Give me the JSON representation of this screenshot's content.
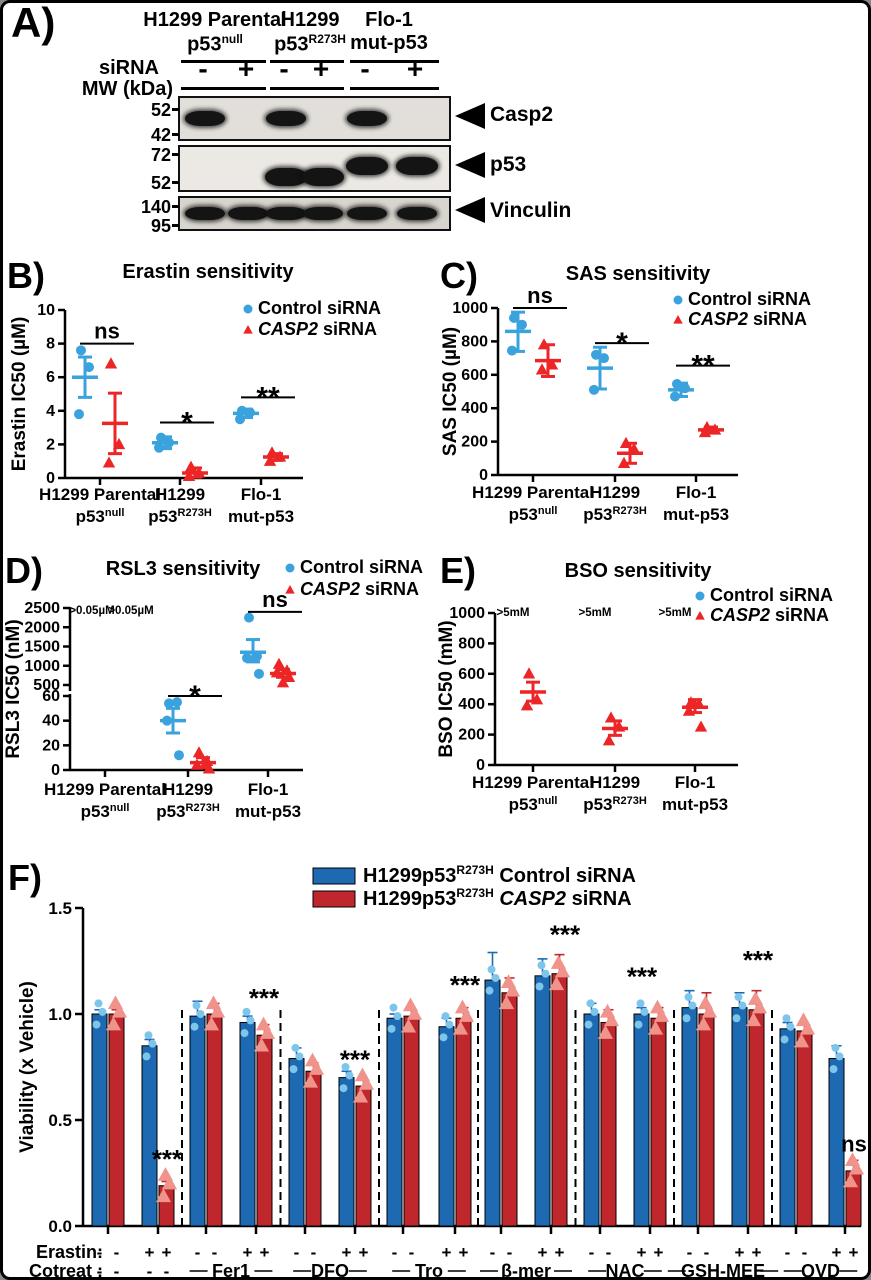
{
  "colors": {
    "blue": "#3AA2DC",
    "red": "#EC2627",
    "bar_blue": "#1D69B2",
    "bar_red": "#C0272D",
    "dot_blue": "#7EC5EC",
    "tri_red": "#F0938B"
  },
  "panel_a": {
    "label": "A)",
    "groups": [
      {
        "line1": "H1299 Parental",
        "line2_base": "p53",
        "line2_sup": "null"
      },
      {
        "line1": "H1299",
        "line2_base": "p53",
        "line2_sup": "R273H"
      },
      {
        "line1": "Flo-1",
        "line2_base": "mut-p53",
        "line2_sup": ""
      }
    ],
    "sirna_label": "siRNA",
    "mw_label": "MW (kDa)",
    "lane_signs": [
      "-",
      "+",
      "-",
      "+",
      "-",
      "+"
    ],
    "blots": [
      {
        "target": "Casp2",
        "mw_top": "52",
        "mw_bottom": "42",
        "bands": [
          1,
          0,
          1,
          0,
          1,
          0
        ]
      },
      {
        "target": "p53",
        "mw_top": "72",
        "mw_bottom": "52",
        "bands": [
          0,
          0,
          1,
          1,
          1,
          1
        ]
      },
      {
        "target": "Vinculin",
        "mw_top": "140",
        "mw_bottom": "95",
        "bands": [
          1,
          1,
          1,
          1,
          1,
          1
        ]
      }
    ]
  },
  "chart_data": [
    {
      "id": "B",
      "type": "scatter",
      "panel_label": "B)",
      "title": "Erastin sensitivity",
      "ylabel": "Erastin IC50 (µM)",
      "yticks": [
        [
          0,
          "0"
        ],
        [
          2,
          "2"
        ],
        [
          4,
          "4"
        ],
        [
          6,
          "6"
        ],
        [
          8,
          "8"
        ],
        [
          10,
          "10"
        ]
      ],
      "ylim": [
        0,
        10
      ],
      "legend": [
        {
          "marker": "circle",
          "color_key": "blue",
          "parts": [
            {
              "t": "Control siRNA"
            }
          ]
        },
        {
          "marker": "triangle",
          "color_key": "red",
          "parts": [
            {
              "t": "CASP2",
              "i": true
            },
            {
              "t": " siRNA"
            }
          ]
        }
      ],
      "groups": [
        {
          "line1": "H1299 Parental",
          "line2_base": "p53",
          "line2_sup": "null"
        },
        {
          "line1": "H1299",
          "line2_base": "p53",
          "line2_sup": "R273H"
        },
        {
          "line1": "Flo-1",
          "line2_base": "mut-p53",
          "line2_sup": ""
        }
      ],
      "series": [
        {
          "name": "Control siRNA",
          "marker": "circle",
          "color_key": "blue",
          "data": [
            {
              "pts": [
                7.6,
                6.6,
                3.8
              ],
              "mean": 6.0,
              "lo": 4.8,
              "hi": 7.2
            },
            {
              "pts": [
                2.4,
                2.1,
                1.8
              ],
              "mean": 2.1,
              "lo": 1.75,
              "hi": 2.45
            },
            {
              "pts": [
                4.0,
                3.9,
                3.5
              ],
              "mean": 3.85,
              "lo": 3.6,
              "hi": 4.1
            }
          ]
        },
        {
          "name": "CASP2 siRNA",
          "marker": "triangle",
          "color_key": "red",
          "data": [
            {
              "pts": [
                6.8,
                2.0,
                0.9
              ],
              "mean": 3.25,
              "lo": 1.45,
              "hi": 5.05
            },
            {
              "pts": [
                0.65,
                0.3,
                0.1
              ],
              "mean": 0.3,
              "lo": 0.05,
              "hi": 0.6
            },
            {
              "pts": [
                1.5,
                1.25,
                1.0
              ],
              "mean": 1.25,
              "lo": 1.05,
              "hi": 1.45
            }
          ]
        }
      ],
      "sigs": [
        {
          "g": 0,
          "y": 8.0,
          "text": "ns"
        },
        {
          "g": 1,
          "y": 3.3,
          "text": "*"
        },
        {
          "g": 2,
          "y": 4.8,
          "text": "**"
        }
      ],
      "annotations": []
    },
    {
      "id": "C",
      "type": "scatter",
      "panel_label": "C)",
      "title": "SAS sensitivity",
      "ylabel": "SAS IC50 (µM)",
      "yticks": [
        [
          0,
          "0"
        ],
        [
          200,
          "200"
        ],
        [
          400,
          "400"
        ],
        [
          600,
          "600"
        ],
        [
          800,
          "800"
        ],
        [
          1000,
          "1000"
        ]
      ],
      "ylim": [
        0,
        1000
      ],
      "legend": [
        {
          "marker": "circle",
          "color_key": "blue",
          "parts": [
            {
              "t": "Control siRNA"
            }
          ]
        },
        {
          "marker": "triangle",
          "color_key": "red",
          "parts": [
            {
              "t": "CASP2",
              "i": true
            },
            {
              "t": " siRNA"
            }
          ]
        }
      ],
      "groups": [
        {
          "line1": "H1299 Parental",
          "line2_base": "p53",
          "line2_sup": "null"
        },
        {
          "line1": "H1299",
          "line2_base": "p53",
          "line2_sup": "R273H"
        },
        {
          "line1": "Flo-1",
          "line2_base": "mut-p53",
          "line2_sup": ""
        }
      ],
      "series": [
        {
          "name": "Control siRNA",
          "marker": "circle",
          "color_key": "blue",
          "data": [
            {
              "pts": [
                940,
                900,
                745
              ],
              "mean": 860,
              "lo": 740,
              "hi": 975
            },
            {
              "pts": [
                720,
                700,
                510
              ],
              "mean": 640,
              "lo": 515,
              "hi": 765
            },
            {
              "pts": [
                545,
                520,
                470
              ],
              "mean": 510,
              "lo": 470,
              "hi": 550
            }
          ]
        },
        {
          "name": "CASP2 siRNA",
          "marker": "triangle",
          "color_key": "red",
          "data": [
            {
              "pts": [
                780,
                660,
                630
              ],
              "mean": 685,
              "lo": 590,
              "hi": 780
            },
            {
              "pts": [
                190,
                155,
                70
              ],
              "mean": 130,
              "lo": 70,
              "hi": 190
            },
            {
              "pts": [
                285,
                270,
                255
              ],
              "mean": 270,
              "lo": 253,
              "hi": 287
            }
          ]
        }
      ],
      "sigs": [
        {
          "g": 0,
          "y": 1000,
          "text": "ns"
        },
        {
          "g": 1,
          "y": 790,
          "text": "*"
        },
        {
          "g": 2,
          "y": 655,
          "text": "**"
        }
      ],
      "annotations": []
    },
    {
      "id": "D",
      "type": "scatter",
      "panel_label": "D)",
      "title": "RSL3 sensitivity",
      "ylabel": "RSL3 IC50 (nM)",
      "yticks": [
        [
          0,
          "0"
        ],
        [
          20,
          "20"
        ],
        [
          40,
          "40"
        ],
        [
          60,
          "60"
        ],
        [
          500,
          "500"
        ],
        [
          1000,
          "1000"
        ],
        [
          1500,
          "1500"
        ],
        [
          2000,
          "2000"
        ],
        [
          2500,
          "2500"
        ]
      ],
      "axis_break": {
        "lower": [
          0,
          60
        ],
        "upper": [
          500,
          2500
        ]
      },
      "legend": [
        {
          "marker": "circle",
          "color_key": "blue",
          "parts": [
            {
              "t": "Control siRNA"
            }
          ]
        },
        {
          "marker": "triangle",
          "color_key": "red",
          "parts": [
            {
              "t": "CASP2",
              "i": true
            },
            {
              "t": " siRNA"
            }
          ]
        }
      ],
      "groups": [
        {
          "line1": "H1299 Parental",
          "line2_base": "p53",
          "line2_sup": "null"
        },
        {
          "line1": "H1299",
          "line2_base": "p53",
          "line2_sup": "R273H"
        },
        {
          "line1": "Flo-1",
          "line2_base": "mut-p53",
          "line2_sup": ""
        }
      ],
      "series": [
        {
          "name": "Control siRNA",
          "marker": "circle",
          "color_key": "blue",
          "data": [
            null,
            {
              "pts": [
                54,
                55,
                40,
                12
              ],
              "mean": 40,
              "lo": 30,
              "hi": 50
            },
            {
              "pts": [
                2250,
                1250,
                1200,
                790
              ],
              "mean": 1350,
              "lo": 1100,
              "hi": 1680
            }
          ]
        },
        {
          "name": "CASP2 siRNA",
          "marker": "triangle",
          "color_key": "red",
          "data": [
            null,
            {
              "pts": [
                14,
                7,
                4,
                1
              ],
              "mean": 6,
              "lo": 2,
              "hi": 10
            },
            {
              "pts": [
                1040,
                870,
                820,
                700,
                560
              ],
              "mean": 800,
              "lo": 700,
              "hi": 900
            }
          ]
        }
      ],
      "sigs": [
        {
          "g": 1,
          "y": 60,
          "text": "*"
        },
        {
          "g": 2,
          "y": 2400,
          "text": "ns"
        }
      ],
      "annotations": [
        {
          "g": 0,
          "dx": -13,
          "y": 2450,
          "text": ">0.05µM",
          "color_key": "blue"
        },
        {
          "g": 0,
          "dx": 26,
          "y": 2450,
          "text": ">0.05µM",
          "color_key": "red"
        }
      ]
    },
    {
      "id": "E",
      "type": "scatter",
      "panel_label": "E)",
      "title": "BSO sensitivity",
      "ylabel": "BSO IC50 (mM)",
      "yticks": [
        [
          0,
          "0"
        ],
        [
          200,
          "200"
        ],
        [
          400,
          "400"
        ],
        [
          600,
          "600"
        ],
        [
          800,
          "800"
        ],
        [
          1000,
          "1000"
        ]
      ],
      "ylim": [
        0,
        1000
      ],
      "legend": [
        {
          "marker": "circle",
          "color_key": "blue",
          "parts": [
            {
              "t": "Control siRNA"
            }
          ]
        },
        {
          "marker": "triangle",
          "color_key": "red",
          "parts": [
            {
              "t": "CASP2",
              "i": true
            },
            {
              "t": " siRNA"
            }
          ]
        }
      ],
      "groups": [
        {
          "line1": "H1299 Parental",
          "line2_base": "p53",
          "line2_sup": "null"
        },
        {
          "line1": "H1299",
          "line2_base": "p53",
          "line2_sup": "R273H"
        },
        {
          "line1": "Flo-1",
          "line2_base": "mut-p53",
          "line2_sup": ""
        }
      ],
      "series": [
        {
          "name": "Control siRNA",
          "marker": "circle",
          "color_key": "blue",
          "data": [
            null,
            null,
            null
          ]
        },
        {
          "name": "CASP2 siRNA",
          "marker": "triangle",
          "color_key": "red",
          "data": [
            {
              "pts": [
                600,
                430,
                390
              ],
              "mean": 480,
              "lo": 420,
              "hi": 545
            },
            {
              "pts": [
                310,
                250,
                160
              ],
              "mean": 240,
              "lo": 195,
              "hi": 290
            },
            {
              "pts": [
                410,
                400,
                355,
                250
              ],
              "mean": 380,
              "lo": 345,
              "hi": 430
            }
          ]
        }
      ],
      "sigs": [],
      "annotations": [
        {
          "g": 0,
          "dx": -20,
          "y": 1005,
          "text": ">5mM",
          "color_key": "blue"
        },
        {
          "g": 1,
          "dx": -20,
          "y": 1005,
          "text": ">5mM",
          "color_key": "blue"
        },
        {
          "g": 2,
          "dx": -20,
          "y": 1005,
          "text": ">5mM",
          "color_key": "blue"
        }
      ]
    },
    {
      "id": "F",
      "type": "bar",
      "panel_label": "F)",
      "ylabel": "Viability (x Vehicle)",
      "yticks": [
        [
          0,
          "0.0"
        ],
        [
          0.5,
          "0.5"
        ],
        [
          1,
          "1.0"
        ],
        [
          1.5,
          "1.5"
        ]
      ],
      "ylim": [
        0,
        1.5
      ],
      "legend": [
        {
          "marker": "rect",
          "color_key": "bar_blue",
          "parts": [
            {
              "t": "H1299p53"
            },
            {
              "t": "R273H",
              "sup": true
            },
            {
              "t": " Control siRNA"
            }
          ]
        },
        {
          "marker": "rect",
          "color_key": "bar_red",
          "parts": [
            {
              "t": "H1299p53"
            },
            {
              "t": "R273H",
              "sup": true
            },
            {
              "t": " "
            },
            {
              "t": "CASP2",
              "i": true
            },
            {
              "t": " siRNA"
            }
          ]
        }
      ],
      "row_labels": {
        "erastin": "Erastin:",
        "cotreat": "Cotreat :"
      },
      "erastin_signs": [
        "-",
        "+",
        "-",
        "+",
        "-",
        "+",
        "-",
        "+",
        "-",
        "+",
        "-",
        "+",
        "-",
        "+",
        "-",
        "+"
      ],
      "cotreat_groups": [
        {
          "label": "- -",
          "pairs": [
            0,
            1
          ],
          "dashes": true
        },
        {
          "label": "Fer1",
          "pairs": [
            2,
            3
          ]
        },
        {
          "label": "DFO",
          "pairs": [
            4,
            5
          ]
        },
        {
          "label": "Tro",
          "pairs": [
            6,
            7
          ]
        },
        {
          "label": "β-mer",
          "pairs": [
            8,
            9
          ]
        },
        {
          "label": "NAC",
          "pairs": [
            10,
            11
          ]
        },
        {
          "label": "GSH-MEE",
          "pairs": [
            12,
            13
          ]
        },
        {
          "label": "QVD",
          "pairs": [
            14,
            15
          ]
        }
      ],
      "series": [
        {
          "name": "H1299p53R273H Control siRNA",
          "color_key": "bar_blue",
          "point_color_key": "dot_blue",
          "marker": "circle",
          "values": [
            1.0,
            0.85,
            0.99,
            0.96,
            0.79,
            0.7,
            0.98,
            0.94,
            1.16,
            1.18,
            1.0,
            1.0,
            1.03,
            1.03,
            0.93,
            0.79
          ],
          "err": [
            0.02,
            0.03,
            0.07,
            0.03,
            0.05,
            0.03,
            0.02,
            0.04,
            0.13,
            0.08,
            0.05,
            0.03,
            0.08,
            0.07,
            0.03,
            0.06
          ]
        },
        {
          "name": "H1299p53R273H CASP2 siRNA",
          "color_key": "bar_red",
          "point_color_key": "tri_red",
          "marker": "triangle",
          "values": [
            1.0,
            0.19,
            1.0,
            0.9,
            0.73,
            0.66,
            0.99,
            0.98,
            1.1,
            1.19,
            0.96,
            0.98,
            1.0,
            1.02,
            0.92,
            0.26
          ],
          "err": [
            0.02,
            0.02,
            0.05,
            0.05,
            0.04,
            0.03,
            0.03,
            0.05,
            0.07,
            0.09,
            0.06,
            0.05,
            0.1,
            0.09,
            0.03,
            0.05
          ]
        }
      ],
      "replicate_offsets": [
        -0.05,
        0.01,
        0.05
      ],
      "sigs": [
        {
          "pair": 1,
          "text": "***",
          "y": 0.33,
          "dx": 9
        },
        {
          "pair": 3,
          "text": "***",
          "y": 1.09,
          "dx": 8
        },
        {
          "pair": 5,
          "text": "***",
          "y": 0.8,
          "dx": 0
        },
        {
          "pair": 7,
          "text": "***",
          "y": 1.15,
          "dx": 10
        },
        {
          "pair": 9,
          "text": "***",
          "y": 1.39,
          "dx": 14
        },
        {
          "pair": 11,
          "text": "***",
          "y": 1.19,
          "dx": -8
        },
        {
          "pair": 13,
          "text": "***",
          "y": 1.27,
          "dx": 10
        },
        {
          "pair": 15,
          "text": "ns",
          "y": 0.38,
          "dx": 9
        }
      ]
    }
  ]
}
